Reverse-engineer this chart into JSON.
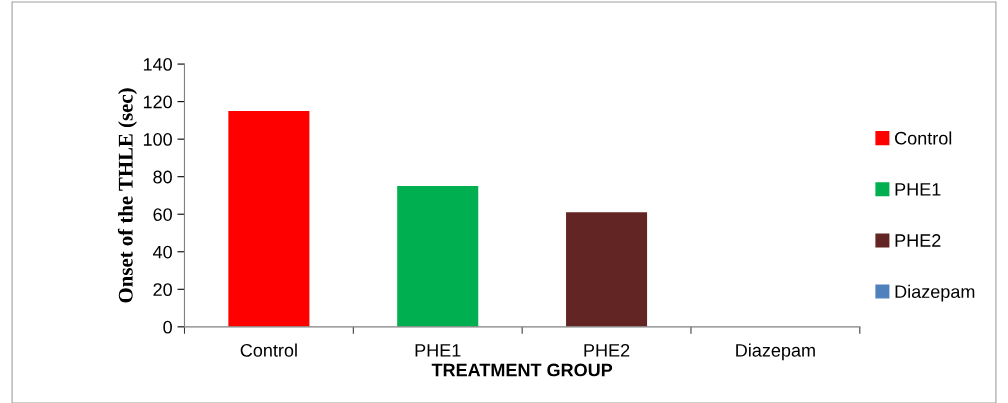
{
  "chart_data": {
    "type": "bar",
    "categories": [
      "Control",
      "PHE1",
      "PHE2",
      "Diazepam"
    ],
    "series": [
      {
        "name": "Control",
        "color": "#ff0000",
        "values": [
          115,
          null,
          null,
          null
        ]
      },
      {
        "name": "PHE1",
        "color": "#00b050",
        "values": [
          null,
          75,
          null,
          null
        ]
      },
      {
        "name": "PHE2",
        "color": "#632523",
        "values": [
          null,
          null,
          61,
          null
        ]
      },
      {
        "name": "Diazepam",
        "color": "#4f81bd",
        "values": [
          null,
          null,
          null,
          0
        ]
      }
    ],
    "xlabel": "TREATMENT GROUP",
    "ylabel": "Onset of the THLE (sec)",
    "ylim": [
      0,
      140
    ],
    "yticks": [
      0,
      20,
      40,
      60,
      80,
      100,
      120,
      140
    ],
    "grid": false,
    "legend": "right"
  }
}
